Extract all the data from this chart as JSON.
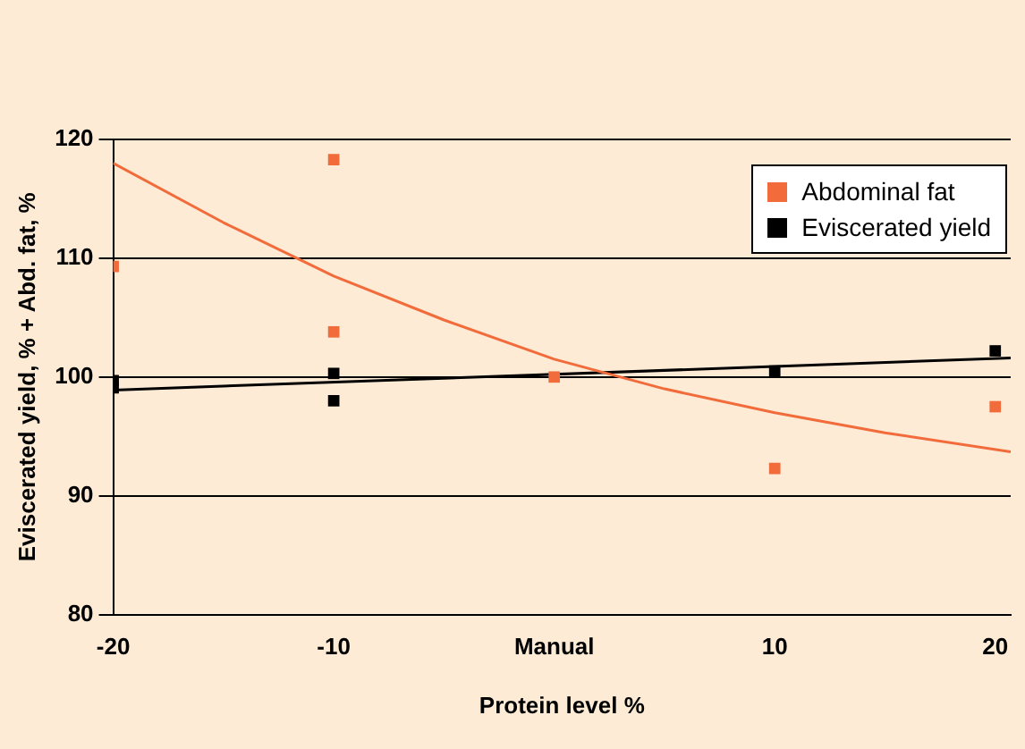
{
  "chart_data": {
    "type": "scatter",
    "xlabel": "Protein level %",
    "ylabel": "Eviscerated yield, % + Abd. fat, %",
    "xlim": [
      -20,
      20.7
    ],
    "xticks": [
      -20,
      -10,
      {
        "value": 0,
        "label": "Manual"
      },
      10,
      20
    ],
    "ylim": [
      80,
      120
    ],
    "yticks": [
      80,
      90,
      100,
      110,
      120
    ],
    "grid": "y",
    "legend": "top right",
    "marker": "square",
    "series": [
      {
        "name": "Abdominal fat",
        "color": "#f26b3a",
        "x": [
          -20,
          -10,
          -10,
          0,
          10,
          20
        ],
        "values": [
          109.3,
          118.3,
          103.8,
          100,
          92.3,
          97.5
        ]
      },
      {
        "name": "Eviscerated yield",
        "color": "#000000",
        "x": [
          -20,
          -20,
          -10,
          -10,
          0,
          10,
          20
        ],
        "values": [
          99.7,
          99.1,
          100.3,
          98.0,
          null,
          100.5,
          102.2
        ]
      },
      {
        "type": "line",
        "color": "#f26b3a",
        "marker": "none",
        "line_style": "solid",
        "x": [
          -20,
          -15,
          -10,
          -5,
          0,
          5,
          10,
          15,
          20.7
        ],
        "values": [
          118,
          113,
          108.5,
          104.8,
          101.5,
          99,
          97,
          95.3,
          93.7
        ]
      },
      {
        "type": "line",
        "color": "#000000",
        "marker": "none",
        "line_style": "solid",
        "x": [
          -20,
          20.7
        ],
        "values": [
          98.9,
          101.6
        ]
      }
    ]
  }
}
